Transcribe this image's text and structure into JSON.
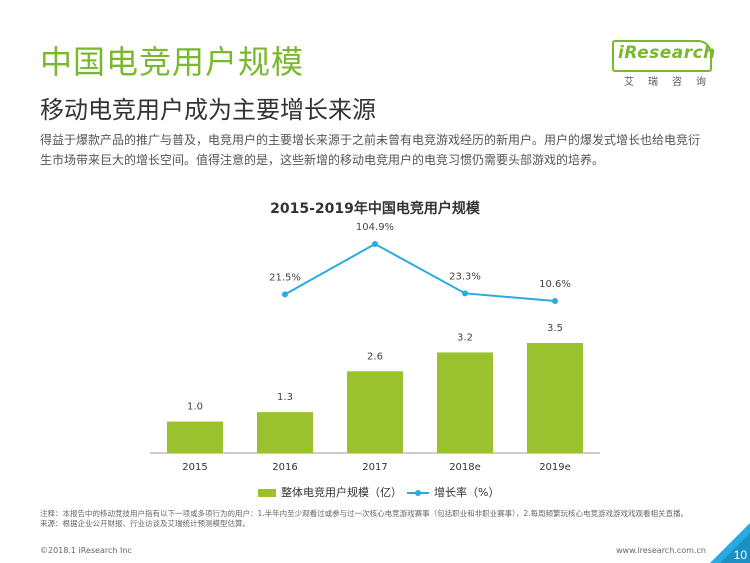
{
  "header": {
    "title": "中国电竞用户规模",
    "subtitle": "移动电竞用户成为主要增长来源",
    "description": "得益于爆款产品的推广与普及，电竞用户的主要增长来源于之前未曾有电竞游戏经历的新用户。用户的爆发式增长也给电竞衍生市场带来巨大的增长空间。值得注意的是，这些新增的移动电竞用户的电竞习惯仍需要头部游戏的培养。"
  },
  "logo": {
    "text": "iResearch",
    "sub": "艾瑞咨询"
  },
  "chart_data": {
    "type": "bar",
    "title": "2015-2019年中国电竞用户规模",
    "categories": [
      "2015",
      "2016",
      "2017",
      "2018e",
      "2019e"
    ],
    "series": [
      {
        "name": "整体电竞用户规模（亿）",
        "type": "bar",
        "color": "#9ac22e",
        "values": [
          1.0,
          1.3,
          2.6,
          3.2,
          3.5
        ],
        "labels": [
          "1.0",
          "1.3",
          "2.6",
          "3.2",
          "3.5"
        ]
      },
      {
        "name": "增长率（%）",
        "type": "line",
        "color": "#29abe2",
        "values": [
          null,
          21.5,
          104.9,
          23.3,
          10.6
        ],
        "labels": [
          "",
          "21.5%",
          "104.9%",
          "23.3%",
          "10.6%"
        ]
      }
    ],
    "bar_ylim": [
      0,
      3.5
    ],
    "line_ylim": [
      10.6,
      104.9
    ]
  },
  "notes": [
    "注释：本报告中的移动竞技用户指有以下一项或多项行为的用户：1.半年内至少观看过或参与过一次核心电竞游戏赛事（包括职业和非职业赛事），2.每周频繁玩核心电竞游戏游戏戏观看相关直播。",
    "来源：根据企业公开财报、行业访谈及艾瑞统计预测模型估算。"
  ],
  "footer": {
    "copyright": "©2018.1 iResearch Inc",
    "url": "www.iresearch.com.cn",
    "page": "10"
  }
}
